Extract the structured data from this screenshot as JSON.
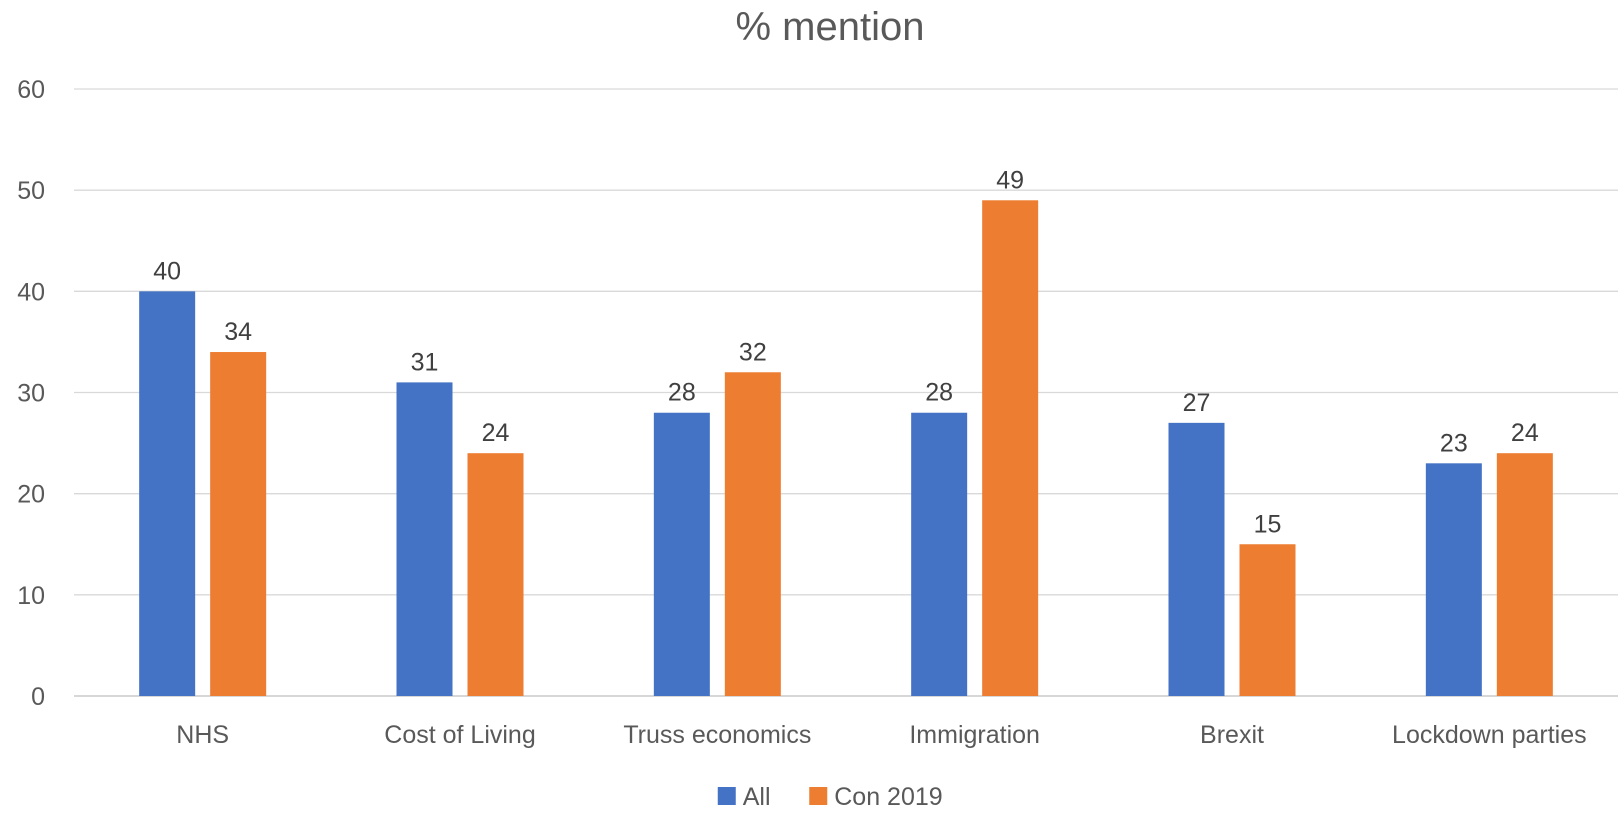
{
  "chart_data": {
    "type": "bar",
    "title": "% mention",
    "xlabel": "",
    "ylabel": "",
    "ylim": [
      0,
      60
    ],
    "yticks": [
      0,
      10,
      20,
      30,
      40,
      50,
      60
    ],
    "grid": true,
    "legend_position": "bottom",
    "categories": [
      "NHS",
      "Cost of Living",
      "Truss economics",
      "Immigration",
      "Brexit",
      "Lockdown parties"
    ],
    "series": [
      {
        "name": "All",
        "color": "#4472C4",
        "values": [
          40,
          31,
          28,
          28,
          27,
          23
        ]
      },
      {
        "name": "Con 2019",
        "color": "#ED7D31",
        "values": [
          34,
          24,
          32,
          49,
          15,
          24
        ]
      }
    ]
  }
}
